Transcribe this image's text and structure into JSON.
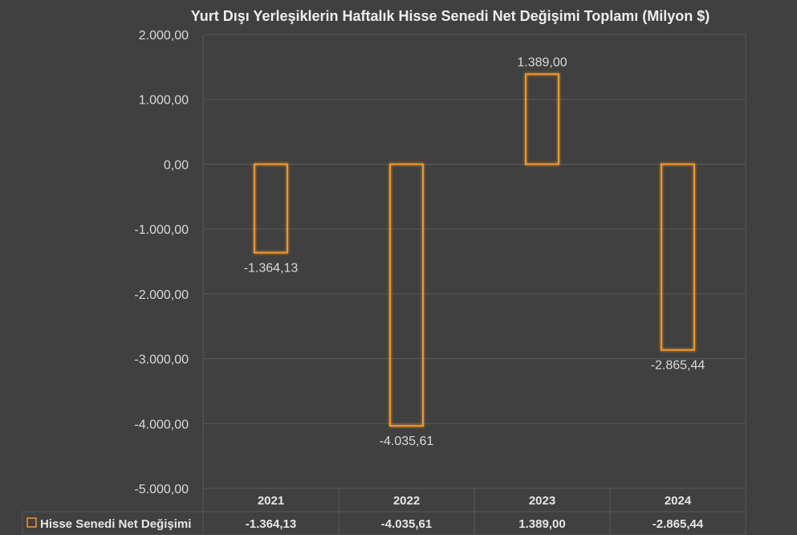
{
  "chart_data": {
    "type": "bar",
    "title": "Yurt Dışı Yerleşiklerin Haftalık Hisse Senedi Net Değişimi Toplamı (Milyon $)",
    "categories": [
      "2021",
      "2022",
      "2023",
      "2024"
    ],
    "series": [
      {
        "name": "Hisse Senedi Net Değişimi",
        "values": [
          -1364.13,
          -4035.61,
          1389.0,
          -2865.44
        ],
        "labels": [
          "-1.364,13",
          "-4.035,61",
          "1.389,00",
          "-2.865,44"
        ]
      }
    ],
    "ylim": [
      -5000,
      2000
    ],
    "yticks": [
      2000,
      1000,
      0,
      -1000,
      -2000,
      -3000,
      -4000,
      -5000
    ],
    "ytick_labels": [
      "2.000,00",
      "1.000,00",
      "0,00",
      "-1.000,00",
      "-2.000,00",
      "-3.000,00",
      "-4.000,00",
      "-5.000,00"
    ],
    "grid": true,
    "data_table": true,
    "colors": {
      "background": "#404040",
      "bar_outline": "#f0962a",
      "gridline": "#595959",
      "text": "#d9d9d9"
    }
  }
}
